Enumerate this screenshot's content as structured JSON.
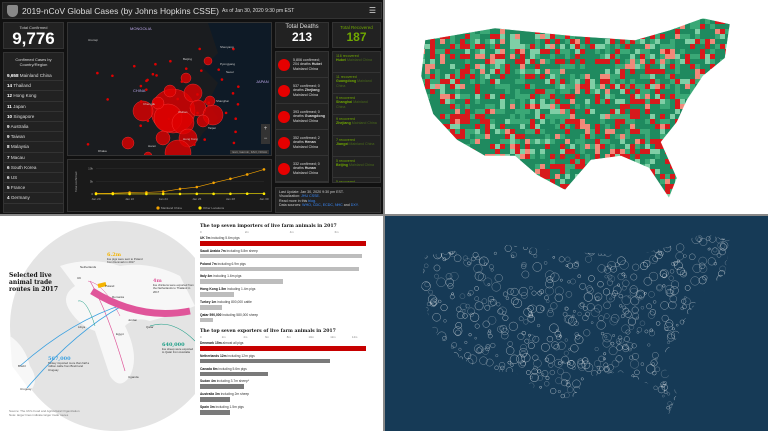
{
  "dashboard": {
    "title": "2019-nCoV Global Cases (by Johns Hopkins CSSE)",
    "as_of": "As of Jan 30, 2020 9:30 pm EST",
    "menu_icon": "hamburger-icon",
    "total_confirmed_label": "Total Confirmed",
    "total_confirmed": "9,776",
    "cases_by_country_label": "Confirmed Cases by Country/Region",
    "countries": [
      {
        "count": "9,658",
        "name": "Mainland China"
      },
      {
        "count": "14",
        "name": "Thailand"
      },
      {
        "count": "12",
        "name": "Hong Kong"
      },
      {
        "count": "11",
        "name": "Japan"
      },
      {
        "count": "10",
        "name": "Singapore"
      },
      {
        "count": "9",
        "name": "Australia"
      },
      {
        "count": "9",
        "name": "Taiwan"
      },
      {
        "count": "8",
        "name": "Malaysia"
      },
      {
        "count": "7",
        "name": "Macau"
      },
      {
        "count": "6",
        "name": "South Korea"
      },
      {
        "count": "6",
        "name": "US"
      },
      {
        "count": "5",
        "name": "France"
      },
      {
        "count": "4",
        "name": "Germany"
      }
    ],
    "map_labels": [
      "MONGOLIA",
      "CHINA",
      "Urumqi",
      "Beijing",
      "Shenyang",
      "Pyongyang",
      "Seoul",
      "Shanghai",
      "Chengdu",
      "Wuhan",
      "Taipei",
      "Hong Kong",
      "Hanoi",
      "Dhaka",
      "JAPAN"
    ],
    "map_attribution": "Esri, Garmin, FAO, NOAA",
    "zoom_in": "+",
    "zoom_out": "−",
    "total_deaths_label": "Total Deaths",
    "total_deaths": "213",
    "total_recovered_label": "Total Recovered",
    "total_recovered": "187",
    "deaths": [
      {
        "stats": "5,806 confirmed; 204 deaths",
        "place": "Hubei",
        "region": "Mainland China"
      },
      {
        "stats": "537 confirmed; 0 deaths",
        "place": "Zhejiang",
        "region": "Mainland China"
      },
      {
        "stats": "393 confirmed; 0 deaths",
        "place": "Guangdong",
        "region": "Mainland China"
      },
      {
        "stats": "352 confirmed; 2 deaths",
        "place": "Henan",
        "region": "Mainland China"
      },
      {
        "stats": "332 confirmed; 0 deaths",
        "place": "Hunan",
        "region": "Mainland China"
      }
    ],
    "recovered": [
      {
        "stats": "116 recovered",
        "place": "Hubei",
        "region": "Mainland China"
      },
      {
        "stats": "11 recovered",
        "place": "Guangdong",
        "region": "Mainland China"
      },
      {
        "stats": "9 recovered",
        "place": "Shanghai",
        "region": "Mainland China"
      },
      {
        "stats": "9 recovered",
        "place": "Zhejiang",
        "region": "Mainland China"
      },
      {
        "stats": "7 recovered",
        "place": "Jiangxi",
        "region": "Mainland China"
      },
      {
        "stats": "5 recovered",
        "place": "Beijing",
        "region": "Mainland China"
      },
      {
        "stats": "5 recovered",
        "place": "",
        "region": ""
      }
    ],
    "last_update": "Last Update: Jan 30, 2020 9:30 pm EST.",
    "viz_prefix": "Visualization:",
    "viz_link": "JHU CSSE.",
    "read_prefix": "Read more in this",
    "read_link": "blog.",
    "sources_prefix": "Data sources:",
    "sources": [
      "WHO,",
      "CDC,",
      "ECDC,",
      "NHC",
      "and",
      "DXY."
    ]
  },
  "chart_data": [
    {
      "type": "line",
      "ylabel": "Total confirmed",
      "x": [
        "Jan 20",
        "Jan 21",
        "Jan 22",
        "Jan 23",
        "Jan 24",
        "Jan 25",
        "Jan 26",
        "Jan 27",
        "Jan 28",
        "Jan 29",
        "Jan 30"
      ],
      "xticks": [
        "Jan 20",
        "Jan 22",
        "Jan 24",
        "Jan 26",
        "Jan 28",
        "Jan 30"
      ],
      "yticks": [
        "0",
        "5k",
        "10k"
      ],
      "ylim": [
        0,
        11000
      ],
      "series": [
        {
          "name": "Mainland China",
          "color": "#f5a300",
          "values": [
            278,
            326,
            547,
            639,
            916,
            1979,
            2737,
            4409,
            5970,
            7678,
            9658
          ]
        },
        {
          "name": "Other Locations",
          "color": "#ffea00",
          "values": [
            4,
            6,
            8,
            14,
            25,
            40,
            57,
            64,
            87,
            105,
            118
          ]
        }
      ],
      "legend": "bottom"
    },
    {
      "type": "bar",
      "title": "The top seven importers of live farm animals in 2017",
      "xticks": [
        "0",
        "2m",
        "4m",
        "6m"
      ],
      "xlim": [
        0,
        7.4
      ],
      "unit": "millions",
      "categories": [
        "UK",
        "Saudi Arabia",
        "Poland",
        "Italy",
        "Hong Kong",
        "Turkey",
        "Qatar"
      ],
      "labels": [
        {
          "b": "UK 7m",
          "t": "including 5.6m pigs"
        },
        {
          "b": "Saudi Arabia 7m",
          "t": "including 5.8m sheep"
        },
        {
          "b": "Poland 7m",
          "t": "including 6.9m pigs"
        },
        {
          "b": "Italy 4m",
          "t": "including 1.6m pigs"
        },
        {
          "b": "Hong Kong 1.5m",
          "t": "including 1.4m pigs"
        },
        {
          "b": "Turkey 1m",
          "t": "including 800,000 cattle"
        },
        {
          "b": "Qatar 590,000",
          "t": "including 580,000 sheep"
        }
      ],
      "values": [
        7.4,
        7.2,
        7.1,
        3.7,
        1.5,
        1.0,
        0.59
      ],
      "highlight_color": "#c70000",
      "bar_color": "#bdbdbd"
    },
    {
      "type": "bar",
      "title": "The top seven exporters of live farm animals in 2017",
      "xticks": [
        "0",
        "2m",
        "4m",
        "6m",
        "8m",
        "10m",
        "12m",
        "14m"
      ],
      "xlim": [
        0,
        15.3
      ],
      "unit": "millions",
      "categories": [
        "Denmark",
        "Netherlands",
        "Canada",
        "Sudan",
        "Australia",
        "Spain"
      ],
      "labels": [
        {
          "b": "Denmark 15m",
          "t": "almost all pigs"
        },
        {
          "b": "Netherlands 12m",
          "t": "including 12m pigs"
        },
        {
          "b": "Canada 6m",
          "t": "including 5.6m pigs"
        },
        {
          "b": "Sudan 4m",
          "t": "including 3.7m sheep*"
        },
        {
          "b": "Australia 3m",
          "t": "including 2m sheep"
        },
        {
          "b": "Spain 3m",
          "t": "including 1.5m pigs"
        }
      ],
      "values": [
        15.3,
        12.0,
        6.3,
        4.1,
        2.8,
        2.8
      ],
      "highlight_color": "#c70000",
      "bar_color": "#7a7a7a"
    }
  ],
  "infographic": {
    "title": "Selected live animal trade routes in 2017",
    "places": [
      "Netherlands",
      "UK",
      "Poland",
      "Romania",
      "Libya",
      "Egypt",
      "Jordan",
      "Qatar",
      "Brazil",
      "Uruguay",
      "Uganda"
    ],
    "callouts": [
      {
        "value": "6.2m",
        "text": "live pigs were sent to Poland from Denmark in 2017",
        "color": "#f5b400"
      },
      {
        "value": "4m",
        "text": "live chickens were exported from the Netherlands to Thailand in 2017",
        "color": "#e0559a"
      },
      {
        "value": "640,000",
        "text": "live sheep were exported to Qatar from Australia",
        "color": "#1b9e86"
      },
      {
        "value": "567,000",
        "text": "Turkey imported more than half a million cattle from Brazil and Uruguay",
        "color": "#3aa0e0"
      }
    ],
    "source": "Source: The UN's Food and Agricultural Organization",
    "note": "Note: larger lines indicate larger trade routes"
  },
  "choropleth": {
    "colors": [
      "#1f8a5f",
      "#3aa876",
      "#7fcfa6",
      "#d7191c",
      "#f08a7a"
    ]
  },
  "dotmap": {
    "background": "#163a56",
    "dot_color": "#ffffff"
  }
}
